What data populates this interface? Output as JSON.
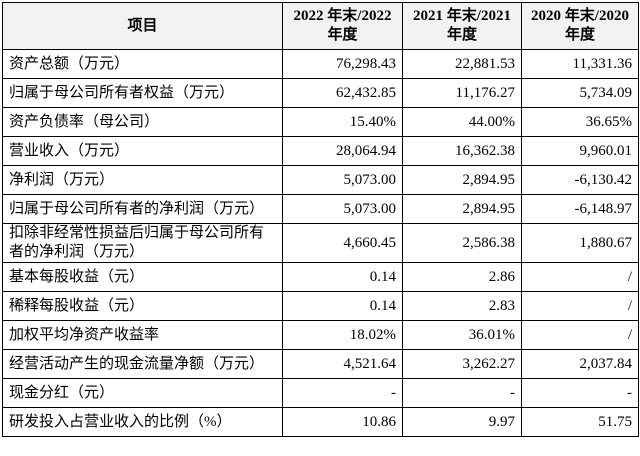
{
  "table": {
    "header": [
      "项目",
      "2022 年末/2022\n年度",
      "2021 年末/2021\n年度",
      "2020 年末/2020\n年度"
    ],
    "rows": [
      [
        "资产总额（万元）",
        "76,298.43",
        "22,881.53",
        "11,331.36"
      ],
      [
        "归属于母公司所有者权益（万元）",
        "62,432.85",
        "11,176.27",
        "5,734.09"
      ],
      [
        "资产负债率（母公司）",
        "15.40%",
        "44.00%",
        "36.65%"
      ],
      [
        "营业收入（万元）",
        "28,064.94",
        "16,362.38",
        "9,960.01"
      ],
      [
        "净利润（万元）",
        "5,073.00",
        "2,894.95",
        "-6,130.42"
      ],
      [
        "归属于母公司所有者的净利润（万元）",
        "5,073.00",
        "2,894.95",
        "-6,148.97"
      ],
      [
        "扣除非经常性损益后归属于母公司所有者的净利润（万元）",
        "4,660.45",
        "2,586.38",
        "1,880.67"
      ],
      [
        "基本每股收益（元）",
        "0.14",
        "2.86",
        "/"
      ],
      [
        "稀释每股收益（元）",
        "0.14",
        "2.83",
        "/"
      ],
      [
        "加权平均净资产收益率",
        "18.02%",
        "36.01%",
        "/"
      ],
      [
        "经营活动产生的现金流量净额（万元）",
        "4,521.64",
        "3,262.27",
        "2,037.84"
      ],
      [
        "现金分红（元）",
        "-",
        "-",
        "-"
      ],
      [
        "研发投入占营业收入的比例（%）",
        "10.86",
        "9.97",
        "51.75"
      ]
    ]
  }
}
